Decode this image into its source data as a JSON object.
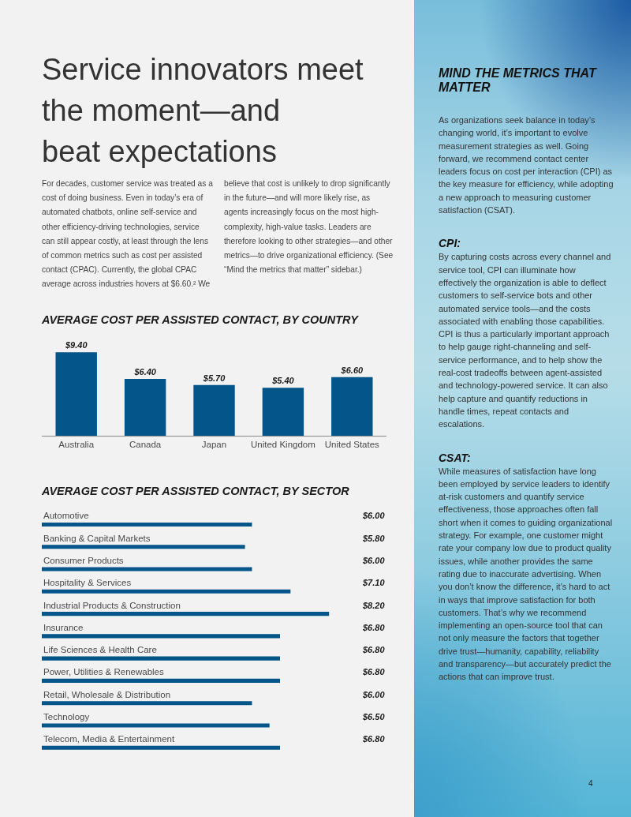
{
  "chart_data": [
    {
      "type": "other",
      "title": "Service innovators meet\nthe moment—and\nbeat expectations",
      "annotations": [
        "For decades, customer service was treated as a cost of doing business. Even in today’s era of automated chatbots, online self-service and other efficiency-driving technologies, service can still appear costly, at least through the lens of common metrics such as cost per assisted contact (CPAC). Currently, the global CPAC average across industries hovers at $6.60.² We believe that cost is unlikely to drop significantly in the future—and will more likely rise, as agents increasingly focus on the most high-complexity, high-value tasks. Leaders are therefore looking to other strategies—and other metrics—to drive organizational efficiency. (See “Mind the metrics that matter” sidebar.)"
      ]
    },
    {
      "type": "bar",
      "title": "AVERAGE COST PER ASSISTED CONTACT, BY COUNTRY",
      "categories": [
        "Australia",
        "Canada",
        "Japan",
        "United Kingdom",
        "United States"
      ],
      "values": [
        9.4,
        6.4,
        5.7,
        5.4,
        6.6
      ],
      "value_labels": [
        "$9.40",
        "$6.40",
        "$5.70",
        "$5.40",
        "$6.60"
      ],
      "color": "#03558a",
      "tick_labels": "x"
    },
    {
      "type": "bar",
      "orientation": "horizontal",
      "title": "AVERAGE COST PER ASSISTED CONTACT, BY SECTOR",
      "categories": [
        "Automotive",
        "Banking & Capital Markets",
        "Consumer Products",
        "Hospitality & Services",
        "Industrial Products & Construction",
        "Insurance",
        "Life Sciences & Health Care",
        "Power, Utilities & Renewables",
        "Retail, Wholesale & Distribution",
        "Technology",
        "Telecom, Media & Entertainment"
      ],
      "values": [
        6.0,
        5.8,
        6.0,
        7.1,
        8.2,
        6.8,
        6.8,
        6.8,
        6.0,
        6.5,
        6.8
      ],
      "value_labels": [
        "$6.00",
        "$5.80",
        "$6.00",
        "$7.10",
        "$8.20",
        "$6.80",
        "$6.80",
        "$6.80",
        "$6.00",
        "$6.50",
        "$6.80"
      ],
      "color": "#03558a",
      "tick_labels": "y"
    },
    {
      "type": "other",
      "title": "MIND THE METRICS THAT MATTER",
      "annotations": [
        "As organizations seek balance in today’s changing world, it’s important to evolve measurement strategies as well. Going forward, we recommend contact center leaders focus on cost per interaction (CPI) as the key measure for efficiency, while adopting a new approach to measuring customer satisfaction (CSAT)."
      ]
    },
    {
      "type": "other",
      "title": "CPI:",
      "annotations": [
        "By capturing costs across every channel and service tool, CPI can illuminate how effectively the organization is able to deflect customers to self-service bots and other automated service tools—and the costs associated with enabling those capabilities. CPI is thus a particularly important approach to help gauge right-channeling and self-service performance, and to help show the real-cost tradeoffs between agent-assisted and technology-powered service. It can also help capture and quantify reductions in handle times, repeat contacts and escalations."
      ]
    },
    {
      "type": "other",
      "title": "CSAT:",
      "annotations": [
        "While measures of satisfaction have long been employed by service leaders to identify at-risk customers and quantify service effectiveness, those approaches often fall short when it comes to guiding organizational strategy. For example, one customer might rate your company low due to product quality issues, while another provides the same rating due to inaccurate advertising. When you don’t know the difference, it’s hard to act in ways that improve satisfaction for both customers. That’s why we recommend implementing an open-source tool that can not only measure the factors that together drive trust—humanity, capability, reliability and transparency—but accurately predict the actions that can improve trust."
      ]
    },
    {
      "type": "other",
      "annotations": [
        "4"
      ]
    }
  ]
}
